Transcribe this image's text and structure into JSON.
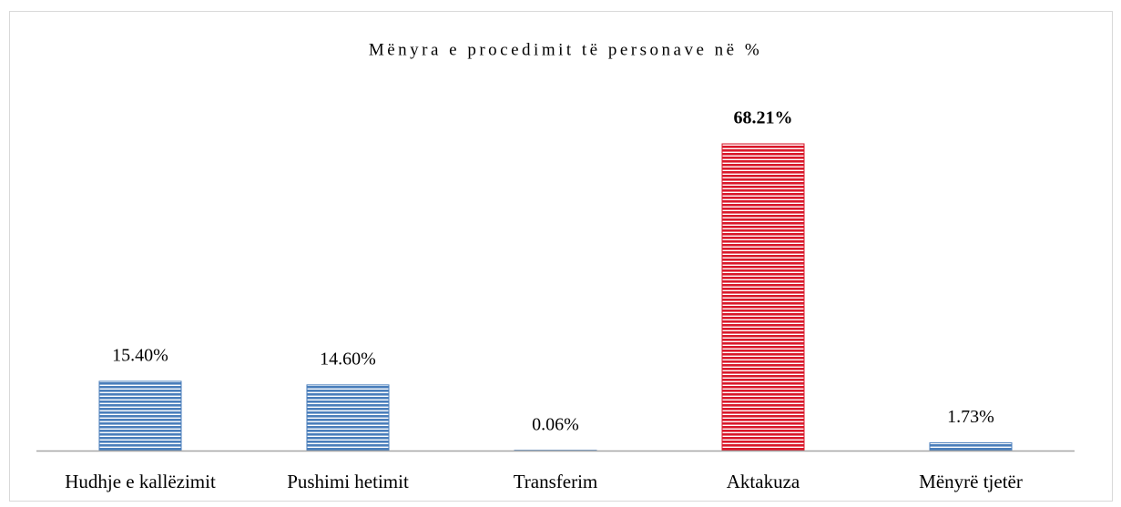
{
  "chart_data": {
    "type": "bar",
    "title": "Mënyra e procedimit të personave në %",
    "categories": [
      "Hudhje e kallëzimit",
      "Pushimi hetimit",
      "Transferim",
      "Aktakuza",
      "Mënyrë tjetër"
    ],
    "values": [
      15.4,
      14.6,
      0.06,
      68.21,
      1.73
    ],
    "value_labels": [
      "15.40%",
      "14.60%",
      "0.06%",
      "68.21%",
      "1.73%"
    ],
    "colors": [
      "#4a7ebb",
      "#4a7ebb",
      "#4a7ebb",
      "#d9182a",
      "#4a7ebb"
    ],
    "bold_labels": [
      false,
      false,
      false,
      true,
      false
    ],
    "pattern": "horizontal-stripes"
  }
}
